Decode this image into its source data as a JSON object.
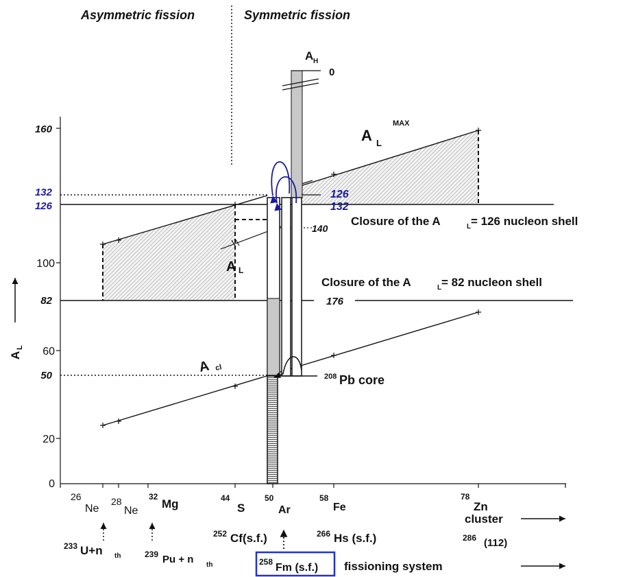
{
  "header": {
    "asymmetric": "Asymmetric fission",
    "symmetric": "Symmetric fission"
  },
  "axis": {
    "y_label": "A",
    "y_label_sub": "L",
    "y_ticks": [
      "0",
      "20",
      "60",
      "100"
    ],
    "y_special": [
      "160",
      "132",
      "126",
      "82",
      "50"
    ]
  },
  "clusters": [
    {
      "mass": "26",
      "sym": "Ne"
    },
    {
      "mass": "28",
      "sym": "Ne"
    },
    {
      "mass": "32",
      "sym": "Mg"
    },
    {
      "mass": "44",
      "sym": "S"
    },
    {
      "mass": "50",
      "sym": "Ar"
    },
    {
      "mass": "58",
      "sym": "Fe"
    },
    {
      "mass": "78",
      "sym": "Zn"
    }
  ],
  "cluster_label": "cluster",
  "systems": {
    "u": {
      "mass": "233",
      "text": "U+n",
      "sub": "th"
    },
    "pu": {
      "mass": "239",
      "text": "Pu + n",
      "sub": "th"
    },
    "cf": {
      "mass": "252",
      "text": "Cf(s.f.)"
    },
    "fm": {
      "mass": "258",
      "text": "Fm (s.f.)"
    },
    "hs": {
      "mass": "266",
      "text": "Hs (s.f.)"
    },
    "e112": {
      "mass": "286",
      "text": "(112)"
    }
  },
  "system_label": "fissioning system",
  "labels": {
    "ah": "A",
    "ah_sub": "H",
    "ah_zero": "0",
    "amax": "A",
    "amax_sub": "L",
    "amax_sup": "MAX",
    "al": "A",
    "al_sub": "L",
    "acl": "A",
    "acl_sub": "cl",
    "v126": "126",
    "v132": "132",
    "v140": "140",
    "v176": "176",
    "closure126": "Closure of the A",
    "closure126_sub": "L",
    "closure126_end": " = 126 nucleon shell",
    "closure82": "Closure of the A",
    "closure82_sub": "L",
    "closure82_end": " = 82 nucleon shell",
    "pb_mass": "208",
    "pb_text": "Pb core"
  },
  "colors": {
    "highlight_box": "#2233cc",
    "blue_text": "#1a1aa0",
    "gray_fill": "#c8c8c8",
    "line": "#111111"
  }
}
